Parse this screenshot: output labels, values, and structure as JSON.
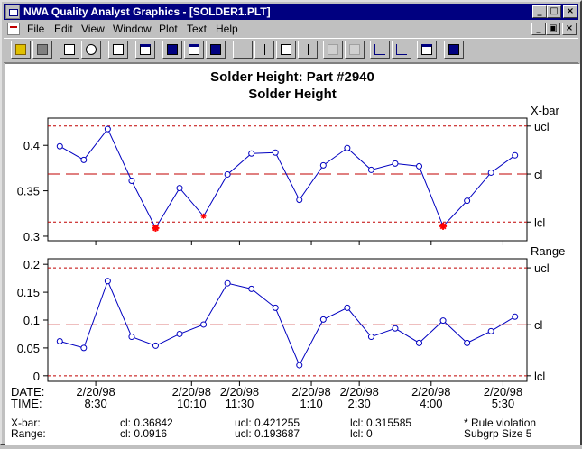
{
  "window": {
    "title": "NWA Quality Analyst Graphics - [SOLDER1.PLT]",
    "controls": {
      "minimize": "_",
      "maximize": "□",
      "close": "×"
    },
    "doc_controls": {
      "minimize": "_",
      "restore": "▣",
      "close": "×"
    }
  },
  "menu": [
    {
      "label": "File"
    },
    {
      "label": "Edit"
    },
    {
      "label": "View"
    },
    {
      "label": "Window"
    },
    {
      "label": "Plot"
    },
    {
      "label": "Text"
    },
    {
      "label": "Help"
    }
  ],
  "toolbar": [
    {
      "name": "open-button",
      "icon": "folder-icon"
    },
    {
      "name": "save-button",
      "icon": "disk-icon"
    },
    {
      "name": "print-button",
      "icon": "printer-icon"
    },
    {
      "name": "print-preview-button",
      "icon": "preview-icon"
    },
    {
      "name": "copy-button",
      "icon": "copy-icon"
    },
    {
      "name": "window-button",
      "icon": "window-icon"
    },
    {
      "name": "chart-button",
      "icon": "chart-icon"
    },
    {
      "name": "tile-button",
      "icon": "tile-icon"
    },
    {
      "name": "layout-button",
      "icon": "layout-icon"
    },
    {
      "name": "pointer-button",
      "icon": "arrow-icon"
    },
    {
      "name": "crosshair-button",
      "icon": "crosshair-icon"
    },
    {
      "name": "text-tool-button",
      "icon": "text-abc-icon"
    },
    {
      "name": "point-tool-button",
      "icon": "point-icon"
    },
    {
      "name": "edit-disabled-button",
      "icon": "edit-icon"
    },
    {
      "name": "xy-disabled-button",
      "icon": "xy-icon"
    },
    {
      "name": "label-points-button",
      "icon": "label-point-icon"
    },
    {
      "name": "label-axis-button",
      "icon": "label-axis-icon"
    },
    {
      "name": "table-button",
      "icon": "table-icon"
    },
    {
      "name": "help-button",
      "icon": "help-pointer-icon"
    }
  ],
  "chart_data": [
    {
      "type": "line",
      "title": "Solder Height: Part #2940",
      "subtitle": "Solder Height",
      "name": "X-bar",
      "ylim": [
        0.295,
        0.43
      ],
      "yticks": [
        "0.4",
        "0.35",
        "0.3"
      ],
      "ytick_values": [
        0.4,
        0.35,
        0.3
      ],
      "limits": {
        "ucl": 0.421255,
        "cl": 0.36842,
        "lcl": 0.315585
      },
      "limit_labels": {
        "ucl": "ucl",
        "cl": "cl",
        "lcl": "lcl"
      },
      "values": [
        0.399,
        0.384,
        0.418,
        0.361,
        0.309,
        0.353,
        0.322,
        0.368,
        0.391,
        0.392,
        0.34,
        0.378,
        0.397,
        0.373,
        0.38,
        0.377,
        0.311,
        0.339,
        0.37,
        0.389
      ],
      "violations": [
        4,
        6,
        16
      ],
      "line_color": "#0000c0",
      "limit_color": "#c00000",
      "violation_color": "#ff0000"
    },
    {
      "type": "line",
      "name": "Range",
      "ylim": [
        -0.01,
        0.21
      ],
      "yticks": [
        "0.2",
        "0.15",
        "0.1",
        "0.05",
        "0"
      ],
      "ytick_values": [
        0.2,
        0.15,
        0.1,
        0.05,
        0
      ],
      "limits": {
        "ucl": 0.193687,
        "cl": 0.0916,
        "lcl": 0
      },
      "limit_labels": {
        "ucl": "ucl",
        "cl": "cl",
        "lcl": "lcl"
      },
      "values": [
        0.062,
        0.05,
        0.17,
        0.07,
        0.054,
        0.075,
        0.092,
        0.166,
        0.156,
        0.122,
        0.019,
        0.101,
        0.122,
        0.07,
        0.085,
        0.059,
        0.099,
        0.059,
        0.08,
        0.106
      ],
      "line_color": "#0000c0",
      "limit_color": "#c00000"
    }
  ],
  "x_axis": {
    "tick_indices": [
      2,
      6,
      8,
      11,
      13,
      16,
      19
    ],
    "date_label": "DATE:",
    "time_label": "TIME:",
    "dates": [
      "2/20/98",
      "2/20/98",
      "2/20/98",
      "2/20/98",
      "2/20/98",
      "2/20/98",
      "2/20/98"
    ],
    "times": [
      "8:30",
      "10:10",
      "11:30",
      "1:10",
      "2:30",
      "4:00",
      "5:30"
    ]
  },
  "summary": {
    "xbar": {
      "label": "X-bar:",
      "cl": "cl: 0.36842",
      "ucl": "ucl: 0.421255",
      "lcl": "lcl: 0.315585"
    },
    "range": {
      "label": "Range:",
      "cl": "cl: 0.0916",
      "ucl": "ucl: 0.193687",
      "lcl": "lcl:  0"
    },
    "note1": "* Rule violation",
    "note2": "Subgrp Size 5"
  }
}
